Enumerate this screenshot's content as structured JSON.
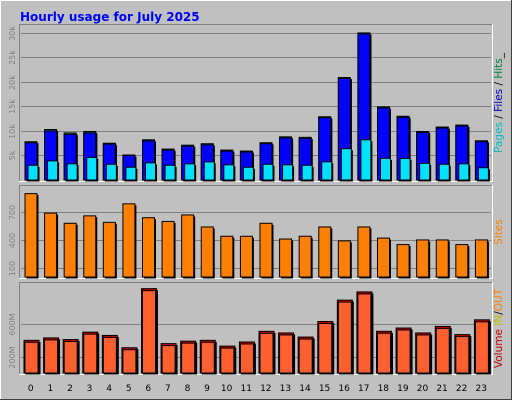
{
  "chart_data": {
    "type": "bar",
    "title": "Hourly usage for July 2025",
    "categories": [
      "0",
      "1",
      "2",
      "3",
      "4",
      "5",
      "6",
      "7",
      "8",
      "9",
      "10",
      "11",
      "12",
      "13",
      "14",
      "15",
      "16",
      "17",
      "18",
      "19",
      "20",
      "21",
      "22",
      "23"
    ],
    "panels": [
      {
        "id": "requests",
        "ticks": [
          {
            "value": 5000,
            "label": "5k"
          },
          {
            "value": 10000,
            "label": "10k"
          },
          {
            "value": 15000,
            "label": "15k"
          },
          {
            "value": 20000,
            "label": "20k"
          },
          {
            "value": 25000,
            "label": "25k"
          },
          {
            "value": 30000,
            "label": "30k"
          }
        ],
        "ylim": [
          0,
          31000
        ],
        "legend": [
          {
            "text": "Pages",
            "color": "#00c0c0"
          },
          {
            "text": " / ",
            "color": "#000000"
          },
          {
            "text": "Files",
            "color": "#0000c0"
          },
          {
            "text": " / ",
            "color": "#000000"
          },
          {
            "text": "Hits",
            "color": "#008040"
          },
          {
            "text": "_",
            "color": "#000000"
          }
        ],
        "series": [
          {
            "name": "Hits",
            "color": "#008040",
            "values": [
              7800,
              10300,
              9600,
              9900,
              7500,
              5100,
              8200,
              6300,
              7100,
              7400,
              6100,
              5900,
              7600,
              8800,
              8700,
              12900,
              20900,
              30000,
              14900,
              13000,
              9900,
              10800,
              11200,
              8000
            ]
          },
          {
            "name": "Files",
            "color": "#0000ff",
            "values": [
              7600,
              10000,
              9300,
              9600,
              7300,
              5000,
              8000,
              6100,
              6900,
              7200,
              5900,
              5700,
              7400,
              8600,
              8500,
              12700,
              20700,
              29800,
              14700,
              12800,
              9700,
              10600,
              11000,
              7800
            ]
          },
          {
            "name": "Pages",
            "color": "#00e0ff",
            "values": [
              3000,
              3900,
              3300,
              4600,
              3200,
              2600,
              3500,
              3000,
              3300,
              3700,
              3100,
              2600,
              3200,
              3100,
              3000,
              3700,
              6400,
              8200,
              4400,
              4400,
              3400,
              3200,
              3300,
              2500
            ]
          }
        ]
      },
      {
        "id": "sites",
        "ticks": [
          {
            "value": 100,
            "label": "100"
          },
          {
            "value": 400,
            "label": "400"
          },
          {
            "value": 700,
            "label": "700"
          }
        ],
        "ylim": [
          0,
          950
        ],
        "legend": [
          {
            "text": "Sites",
            "color": "#ff8000"
          }
        ],
        "series": [
          {
            "name": "Sites",
            "color": "#ff8000",
            "values": [
              900,
              690,
              580,
              660,
              590,
              790,
              640,
              600,
              670,
              540,
              440,
              440,
              580,
              410,
              440,
              540,
              390,
              540,
              420,
              350,
              400,
              400,
              350,
              400
            ]
          }
        ]
      },
      {
        "id": "volume",
        "ticks": [
          {
            "value": 200,
            "label": "200M"
          },
          {
            "value": 600,
            "label": "600M"
          }
        ],
        "ylim": [
          0,
          1060
        ],
        "legend": [
          {
            "text": "Volume",
            "color": "#c00000"
          },
          {
            "text": " IN",
            "color": "#c0c000"
          },
          {
            "text": "/",
            "color": "#000000"
          },
          {
            "text": "OUT",
            "color": "#ff8000"
          }
        ],
        "series": [
          {
            "name": "Volume",
            "color": "#ff6030",
            "values": [
              410,
              440,
              420,
              510,
              470,
              320,
              1040,
              370,
              400,
              410,
              340,
              390,
              520,
              500,
              450,
              640,
              900,
              1000,
              520,
              560,
              500,
              580,
              480,
              660
            ]
          }
        ]
      }
    ]
  }
}
